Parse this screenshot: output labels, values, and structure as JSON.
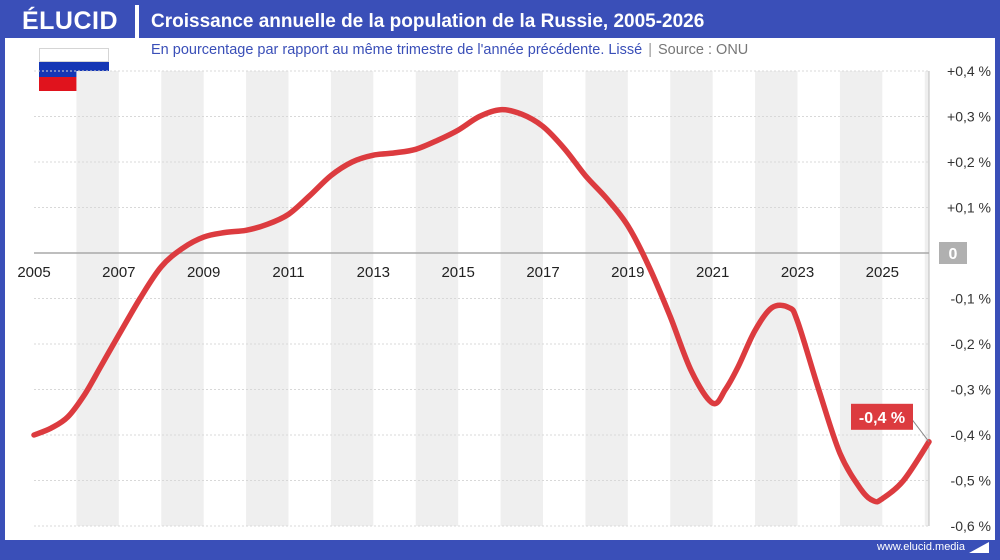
{
  "header": {
    "logo": "ÉLUCID",
    "title": "Croissance annuelle de la population de la Russie, 2005-2026"
  },
  "subtitle": {
    "main": "En pourcentage par rapport au même trimestre de l'année précédente. Lissé",
    "separator": "|",
    "source": "Source : ONU"
  },
  "footer": {
    "url": "www.elucid.media"
  },
  "colors": {
    "brand": "#3a4fb8",
    "line": "#dc3b3f",
    "band": "#efefef",
    "grid": "#d8d8d8",
    "zero_badge": "#b0b0b0"
  },
  "chart_data": {
    "type": "line",
    "xlim": [
      2005,
      2026.1
    ],
    "ylim": [
      -0.6,
      0.4
    ],
    "x_ticks": [
      2005,
      2007,
      2009,
      2011,
      2013,
      2015,
      2017,
      2019,
      2021,
      2023,
      2025
    ],
    "x_tick_labels": [
      "2005",
      "2007",
      "2009",
      "2011",
      "2013",
      "2015",
      "2017",
      "2019",
      "2021",
      "2023",
      "2025"
    ],
    "y_ticks": [
      0.4,
      0.3,
      0.2,
      0.1,
      0,
      -0.1,
      -0.2,
      -0.3,
      -0.4,
      -0.5,
      -0.6
    ],
    "y_tick_labels": [
      "+0,4 %",
      "+0,3 %",
      "+0,2 %",
      "+0,1 %",
      "0",
      "-0,1 %",
      "-0,2 %",
      "-0,3 %",
      "-0,4 %",
      "-0,5 %",
      "-0,6 %"
    ],
    "grid": true,
    "series": [
      {
        "x": [
          2005,
          2005.4,
          2005.8,
          2006.2,
          2006.6,
          2007,
          2007.5,
          2008,
          2008.5,
          2009,
          2009.5,
          2010,
          2010.5,
          2011,
          2011.5,
          2012,
          2012.5,
          2013,
          2013.5,
          2014,
          2014.5,
          2015,
          2015.5,
          2016,
          2016.5,
          2017,
          2017.5,
          2018,
          2018.5,
          2019,
          2019.5,
          2020,
          2020.5,
          2021,
          2021.3,
          2021.6,
          2022,
          2022.4,
          2022.8,
          2023,
          2023.5,
          2024,
          2024.5,
          2024.8,
          2025,
          2025.5,
          2026.1
        ],
        "y": [
          -0.4,
          -0.385,
          -0.36,
          -0.31,
          -0.245,
          -0.18,
          -0.1,
          -0.03,
          0.01,
          0.035,
          0.045,
          0.05,
          0.063,
          0.085,
          0.126,
          0.17,
          0.2,
          0.215,
          0.22,
          0.228,
          0.247,
          0.27,
          0.3,
          0.315,
          0.305,
          0.278,
          0.23,
          0.17,
          0.12,
          0.06,
          -0.03,
          -0.14,
          -0.26,
          -0.33,
          -0.3,
          -0.25,
          -0.17,
          -0.12,
          -0.12,
          -0.15,
          -0.3,
          -0.44,
          -0.52,
          -0.545,
          -0.54,
          -0.5,
          -0.415
        ]
      }
    ],
    "annotation": {
      "label": "-0,4 %",
      "x": 2026.1,
      "y": -0.415
    }
  }
}
